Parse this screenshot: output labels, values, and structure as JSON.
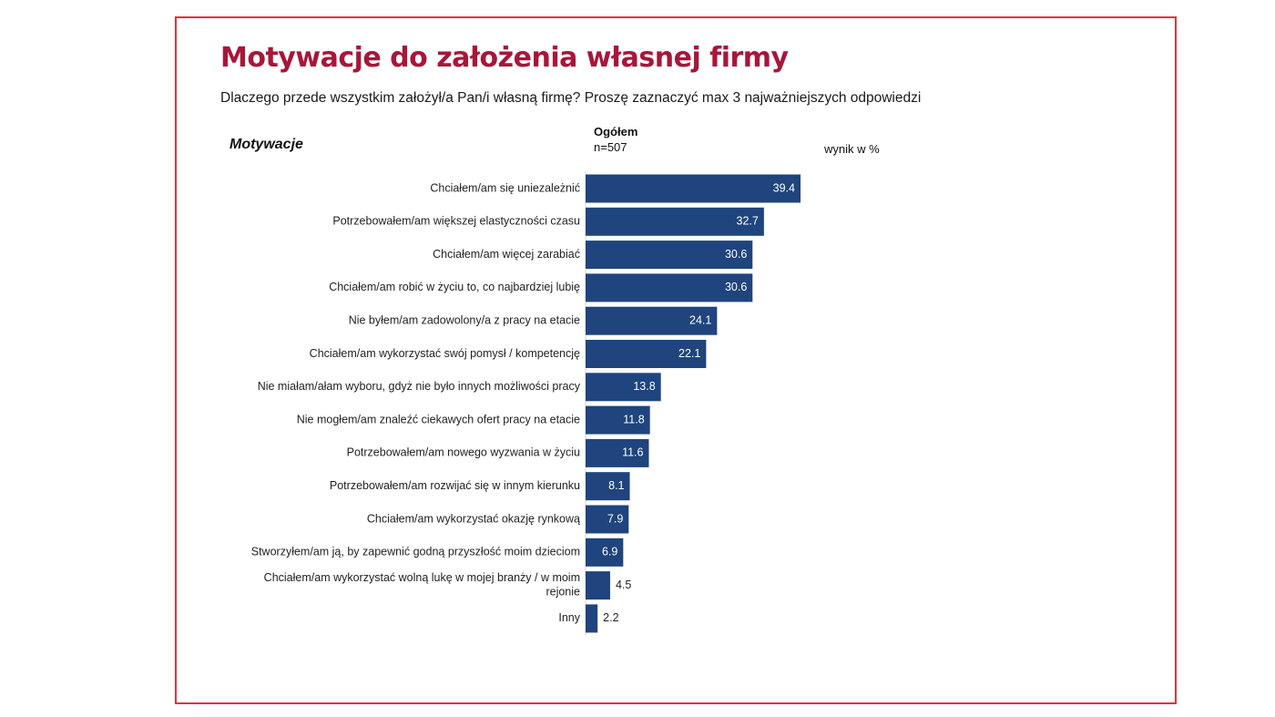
{
  "header": {
    "title": "Motywacje do założenia własnej firmy",
    "subtitle": "Dlaczego przede wszystkim założył/a Pan/i własną firmę? Proszę zaznaczyć max 3 najważniejszych odpowiedzi"
  },
  "table_head": {
    "column_label": "Motywacje",
    "group_name": "Ogółem",
    "group_n": "n=507",
    "unit": "wynik w %"
  },
  "colors": {
    "bar": "#1f447e",
    "title": "#a8163a",
    "frame": "#e0333a"
  },
  "chart_data": {
    "type": "bar",
    "orientation": "horizontal",
    "title": "Motywacje do założenia własnej firmy",
    "xlabel": "",
    "ylabel": "Motywacje",
    "unit": "wynik w %",
    "categories": [
      "Chciałem/am się uniezależnić",
      "Potrzebowałem/am większej elastyczności czasu",
      "Chciałem/am więcej zarabiać",
      "Chciałem/am robić w życiu to, co najbardziej lubię",
      "Nie byłem/am zadowolony/a z pracy na etacie",
      "Chciałem/am wykorzystać swój pomysł / kompetencję",
      "Nie miałam/ałam wyboru, gdyż nie było innych możliwości pracy",
      "Nie mogłem/am znaleźć ciekawych ofert pracy na etacie",
      "Potrzebowałem/am nowego wyzwania w życiu",
      "Potrzebowałem/am rozwijać się w innym kierunku",
      "Chciałem/am wykorzystać okazję rynkową",
      "Stworzyłem/am ją, by zapewnić godną przyszłość moim dzieciom",
      "Chciałem/am wykorzystać wolną lukę w mojej branży / w moim rejonie",
      "Inny"
    ],
    "series": [
      {
        "name": "Ogółem",
        "values": [
          39.4,
          32.7,
          30.6,
          30.6,
          24.1,
          22.1,
          13.8,
          11.8,
          11.6,
          8.1,
          7.9,
          6.9,
          4.5,
          2.2
        ]
      }
    ],
    "value_labels": [
      "39.4",
      "32.7",
      "30.6",
      "30.6",
      "24.1",
      "22.1",
      "13.8",
      "11.8",
      "11.6",
      "8.1",
      "7.9",
      "6.9",
      "4.5",
      "2.2"
    ],
    "xlim": [
      0,
      40
    ],
    "grid": false,
    "legend": "none"
  }
}
